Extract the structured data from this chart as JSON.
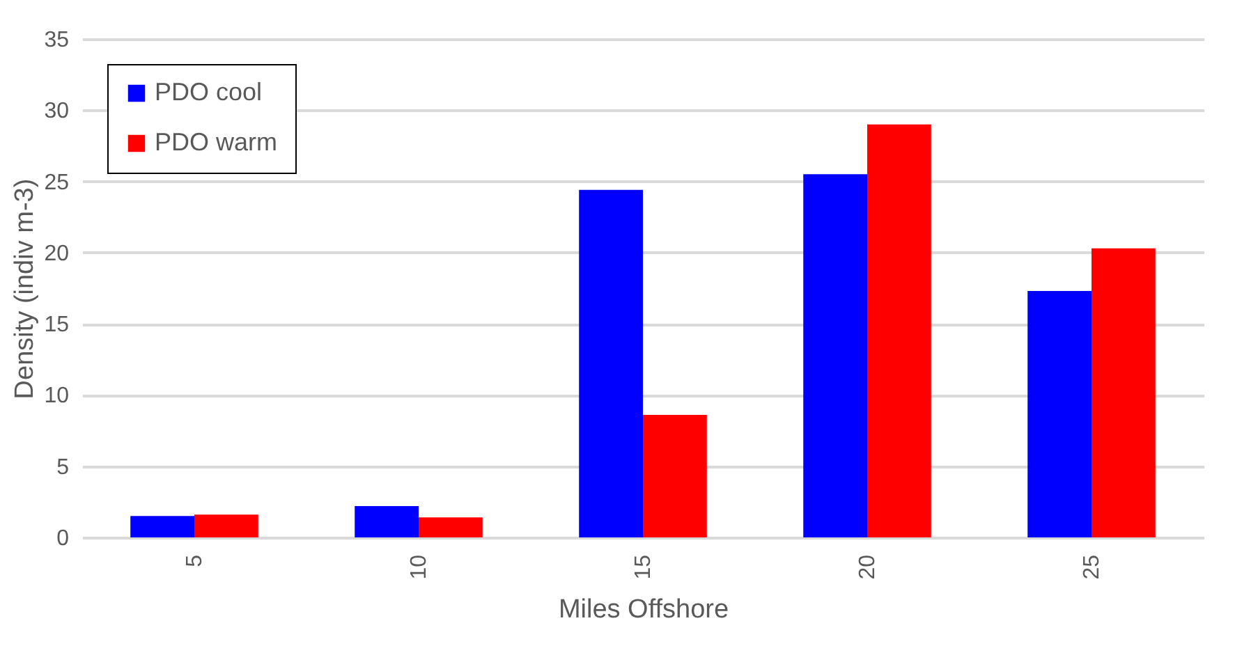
{
  "chart_data": {
    "type": "bar",
    "xlabel": "Miles Offshore",
    "ylabel": "Density (indiv m-3)",
    "categories": [
      "5",
      "10",
      "15",
      "20",
      "25"
    ],
    "series": [
      {
        "name": "PDO cool",
        "color": "#0000ff",
        "values": [
          1.5,
          2.2,
          24.4,
          25.5,
          17.3
        ]
      },
      {
        "name": "PDO warm",
        "color": "#ff0000",
        "values": [
          1.6,
          1.4,
          8.6,
          29,
          20.3
        ]
      }
    ],
    "ylim": [
      0,
      35
    ],
    "yticks": [
      0,
      5,
      10,
      15,
      20,
      25,
      30,
      35
    ],
    "grid": "y",
    "legend": "top left"
  }
}
